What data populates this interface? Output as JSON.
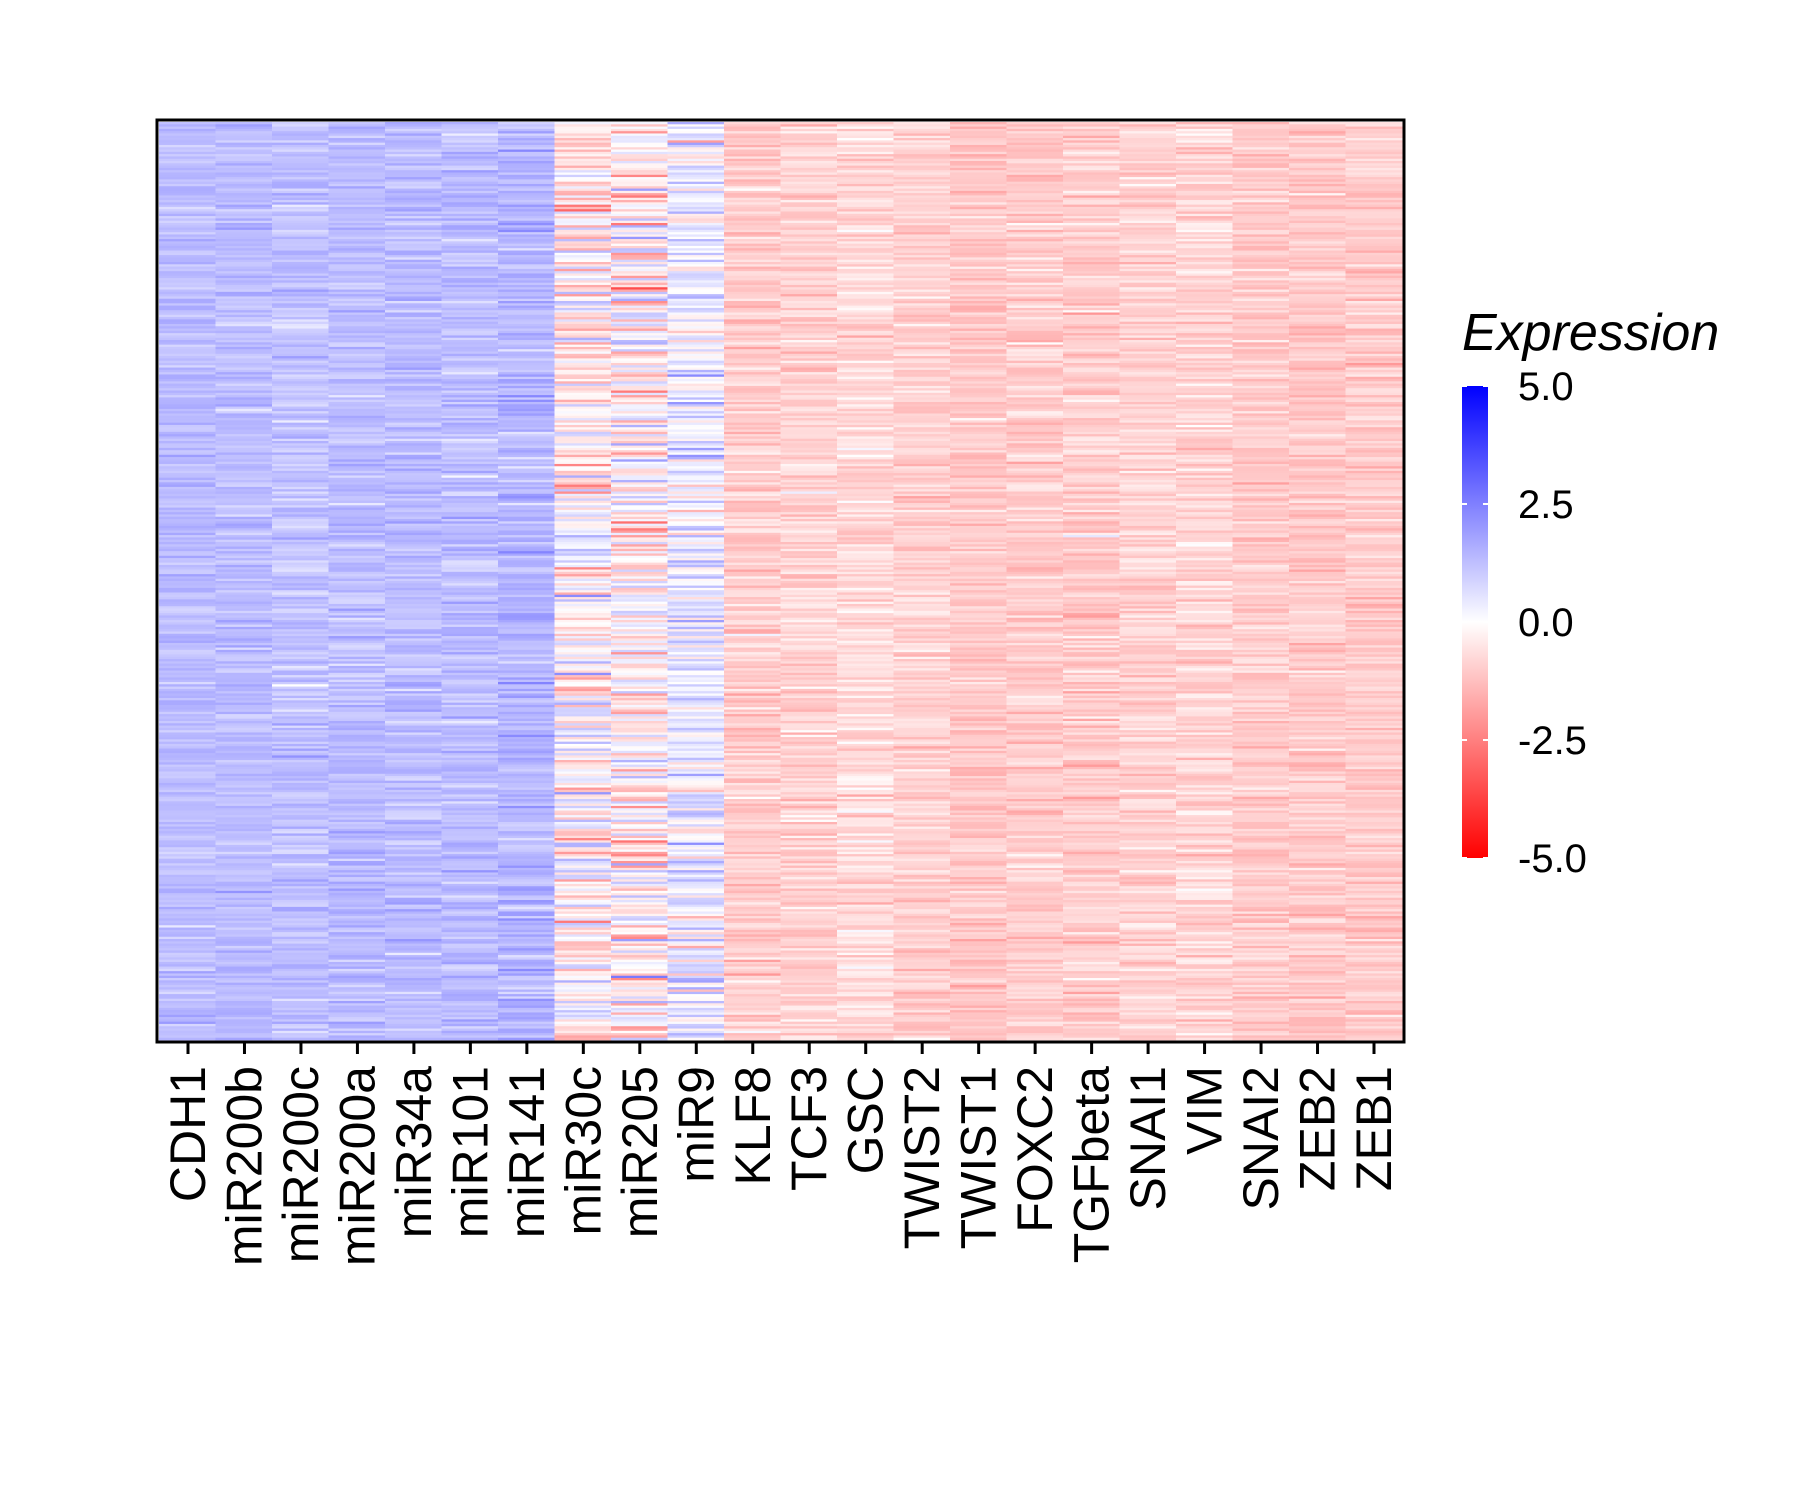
{
  "chart_data": {
    "type": "heatmap",
    "title": "",
    "xlabel": "",
    "ylabel": "",
    "columns": [
      "CDH1",
      "miR200b",
      "miR200c",
      "miR200a",
      "miR34a",
      "miR101",
      "miR141",
      "miR30c",
      "miR205",
      "miR9",
      "KLF8",
      "TCF3",
      "GSC",
      "TWIST2",
      "TWIST1",
      "FOXC2",
      "TGFbeta",
      "SNAI1",
      "VIM",
      "SNAI2",
      "ZEB2",
      "ZEB1"
    ],
    "column_mean_expression": [
      1.3,
      1.3,
      1.2,
      1.3,
      1.3,
      1.3,
      1.4,
      -0.3,
      -0.2,
      0.4,
      -1.0,
      -0.9,
      -0.7,
      -0.9,
      -1.1,
      -1.0,
      -1.0,
      -0.9,
      -0.8,
      -1.0,
      -1.1,
      -1.0
    ],
    "column_variability": [
      0.25,
      0.25,
      0.3,
      0.3,
      0.3,
      0.3,
      0.35,
      0.9,
      1.0,
      0.7,
      0.35,
      0.35,
      0.35,
      0.3,
      0.3,
      0.3,
      0.35,
      0.3,
      0.35,
      0.3,
      0.3,
      0.3
    ],
    "rows_approx": 400,
    "row_labels_shown": false,
    "legend": {
      "title": "Expression",
      "placement": "right",
      "min": -5.0,
      "max": 5.0,
      "ticks": [
        "5.0",
        "2.5",
        "0.0",
        "-2.5",
        "-5.0"
      ],
      "tick_values": [
        5.0,
        2.5,
        0.0,
        -2.5,
        -5.0
      ],
      "low_color": "#ff0000",
      "mid_color": "#ffffff",
      "high_color": "#0000ff"
    }
  }
}
